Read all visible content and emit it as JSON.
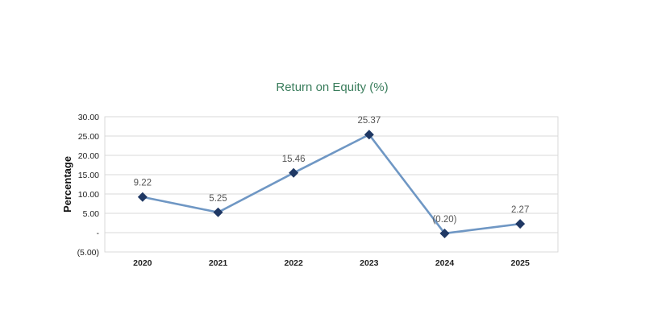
{
  "chart_data": {
    "type": "line",
    "title": "Return on Equity (%)",
    "xlabel": "",
    "ylabel": "Percentage",
    "categories": [
      "2020",
      "2021",
      "2022",
      "2023",
      "2024",
      "2025"
    ],
    "series": [
      {
        "values": [
          9.22,
          5.25,
          15.46,
          25.37,
          -0.2,
          2.27
        ],
        "data_labels": [
          "9.22",
          "5.25",
          "15.46",
          "25.37",
          "(0.20)",
          "2.27"
        ]
      }
    ],
    "ylim": [
      -5,
      30
    ],
    "yticks": [
      {
        "value": 30,
        "label": "30.00"
      },
      {
        "value": 25,
        "label": "25.00"
      },
      {
        "value": 20,
        "label": "20.00"
      },
      {
        "value": 15,
        "label": "15.00"
      },
      {
        "value": 10,
        "label": "10.00"
      },
      {
        "value": 5,
        "label": "5.00"
      },
      {
        "value": 0,
        "label": "-"
      },
      {
        "value": -5,
        "label": "(5.00)"
      }
    ],
    "grid": true,
    "legend": "none",
    "colors": {
      "title": "#3a7d5c",
      "line": "#6f97c4",
      "marker": "#1f3864",
      "grid": "#d9d9d9"
    }
  }
}
